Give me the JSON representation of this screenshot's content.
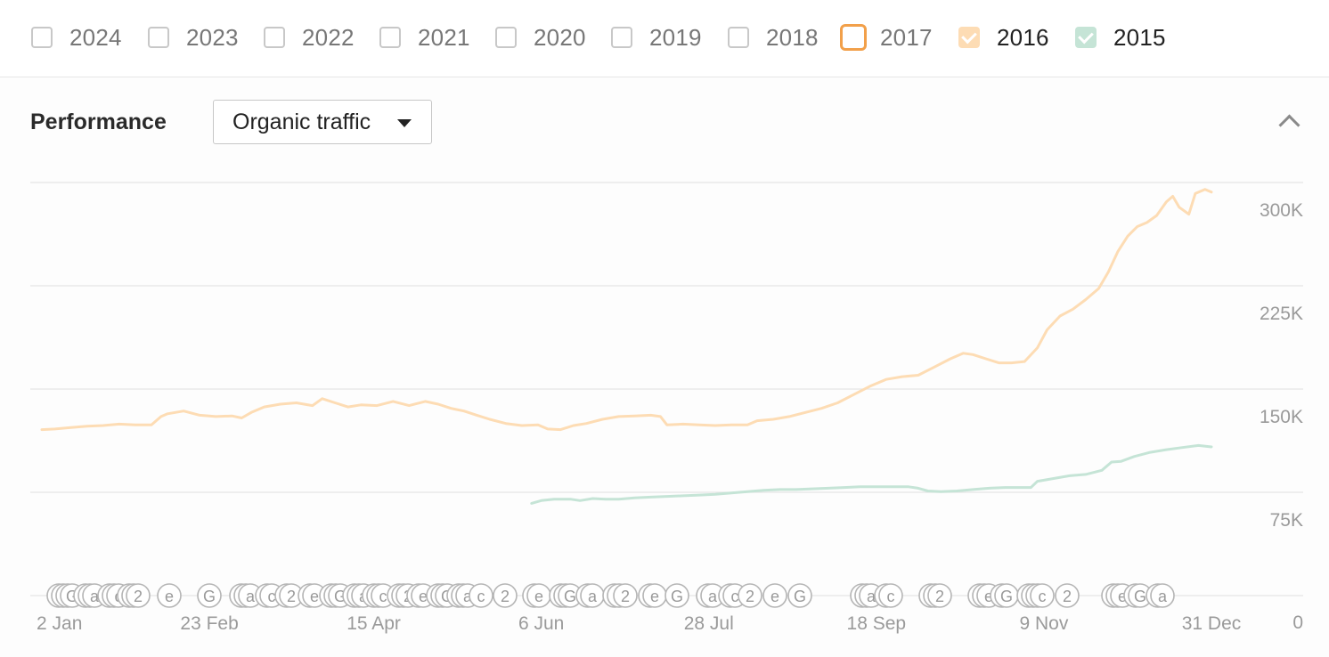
{
  "years": [
    {
      "label": "2024",
      "state": "unchecked"
    },
    {
      "label": "2023",
      "state": "unchecked"
    },
    {
      "label": "2022",
      "state": "unchecked"
    },
    {
      "label": "2021",
      "state": "unchecked"
    },
    {
      "label": "2020",
      "state": "unchecked"
    },
    {
      "label": "2019",
      "state": "unchecked"
    },
    {
      "label": "2018",
      "state": "unchecked"
    },
    {
      "label": "2017",
      "state": "focused"
    },
    {
      "label": "2016",
      "state": "checked"
    },
    {
      "label": "2015",
      "state": "checked"
    }
  ],
  "colors": {
    "y2016": "#fddcb4",
    "y2015": "#c5e4d6",
    "focus": "#f2a04a",
    "grid": "#e6e6e6"
  },
  "panel": {
    "title": "Performance",
    "metric_selector": "Organic traffic",
    "collapse_icon": "chevron-up-icon"
  },
  "chart_data": {
    "type": "line",
    "ylim": [
      0,
      300000
    ],
    "ytick_labels": [
      "0",
      "75K",
      "150K",
      "225K",
      "300K"
    ],
    "yticks": [
      0,
      75000,
      150000,
      225000,
      300000
    ],
    "xtick_labels": [
      "2 Jan",
      "23 Feb",
      "15 Apr",
      "6 Jun",
      "28 Jul",
      "18 Sep",
      "9 Nov",
      "31 Dec"
    ],
    "xticks_day": [
      1,
      53,
      104,
      156,
      208,
      260,
      312,
      364
    ],
    "x_unit": "day of year",
    "series": [
      {
        "name": "2016",
        "color": "#fddcb4",
        "points": [
          [
            1,
            120500
          ],
          [
            5,
            121000
          ],
          [
            10,
            122000
          ],
          [
            15,
            123000
          ],
          [
            20,
            123500
          ],
          [
            25,
            124500
          ],
          [
            30,
            124000
          ],
          [
            35,
            124000
          ],
          [
            38,
            130000
          ],
          [
            40,
            132000
          ],
          [
            45,
            134000
          ],
          [
            50,
            131000
          ],
          [
            55,
            130000
          ],
          [
            60,
            130500
          ],
          [
            63,
            129000
          ],
          [
            66,
            133000
          ],
          [
            70,
            137000
          ],
          [
            75,
            139000
          ],
          [
            80,
            140000
          ],
          [
            85,
            138000
          ],
          [
            88,
            143000
          ],
          [
            92,
            140000
          ],
          [
            96,
            137000
          ],
          [
            100,
            138500
          ],
          [
            105,
            138000
          ],
          [
            110,
            141000
          ],
          [
            115,
            138000
          ],
          [
            120,
            141000
          ],
          [
            124,
            139000
          ],
          [
            128,
            136000
          ],
          [
            132,
            134000
          ],
          [
            136,
            131000
          ],
          [
            140,
            128000
          ],
          [
            145,
            125000
          ],
          [
            150,
            123500
          ],
          [
            155,
            124000
          ],
          [
            158,
            121000
          ],
          [
            162,
            120500
          ],
          [
            166,
            123500
          ],
          [
            170,
            125000
          ],
          [
            175,
            128000
          ],
          [
            180,
            130000
          ],
          [
            185,
            130500
          ],
          [
            190,
            131000
          ],
          [
            193,
            130000
          ],
          [
            195,
            124000
          ],
          [
            200,
            124500
          ],
          [
            205,
            124000
          ],
          [
            210,
            123500
          ],
          [
            215,
            124000
          ],
          [
            220,
            124000
          ],
          [
            223,
            127000
          ],
          [
            228,
            128000
          ],
          [
            233,
            130000
          ],
          [
            238,
            133000
          ],
          [
            243,
            136000
          ],
          [
            248,
            140000
          ],
          [
            253,
            146000
          ],
          [
            258,
            152000
          ],
          [
            263,
            157000
          ],
          [
            268,
            159000
          ],
          [
            273,
            160000
          ],
          [
            278,
            166000
          ],
          [
            283,
            172000
          ],
          [
            287,
            176000
          ],
          [
            290,
            175000
          ],
          [
            294,
            172000
          ],
          [
            298,
            169000
          ],
          [
            302,
            169000
          ],
          [
            306,
            170000
          ],
          [
            310,
            180000
          ],
          [
            313,
            193000
          ],
          [
            317,
            203000
          ],
          [
            321,
            208000
          ],
          [
            325,
            215000
          ],
          [
            329,
            223000
          ],
          [
            332,
            235000
          ],
          [
            335,
            250000
          ],
          [
            338,
            261000
          ],
          [
            341,
            268000
          ],
          [
            344,
            271000
          ],
          [
            347,
            276000
          ],
          [
            350,
            286000
          ],
          [
            352,
            290000
          ],
          [
            354,
            282000
          ],
          [
            357,
            277000
          ],
          [
            359,
            292000
          ],
          [
            362,
            295000
          ],
          [
            364,
            293000
          ]
        ]
      },
      {
        "name": "2015",
        "color": "#c5e4d6",
        "points": [
          [
            153,
            67000
          ],
          [
            156,
            69000
          ],
          [
            160,
            70000
          ],
          [
            165,
            70000
          ],
          [
            168,
            69000
          ],
          [
            172,
            70500
          ],
          [
            176,
            70000
          ],
          [
            180,
            70000
          ],
          [
            185,
            71000
          ],
          [
            190,
            71500
          ],
          [
            195,
            72000
          ],
          [
            200,
            72500
          ],
          [
            205,
            73000
          ],
          [
            210,
            73500
          ],
          [
            215,
            74500
          ],
          [
            220,
            75500
          ],
          [
            225,
            76500
          ],
          [
            230,
            77000
          ],
          [
            235,
            77000
          ],
          [
            240,
            77500
          ],
          [
            245,
            78000
          ],
          [
            250,
            78500
          ],
          [
            255,
            79000
          ],
          [
            260,
            79000
          ],
          [
            265,
            79000
          ],
          [
            270,
            79000
          ],
          [
            273,
            78000
          ],
          [
            276,
            76000
          ],
          [
            280,
            75500
          ],
          [
            285,
            76000
          ],
          [
            290,
            77000
          ],
          [
            295,
            78000
          ],
          [
            300,
            78500
          ],
          [
            305,
            78500
          ],
          [
            308,
            78500
          ],
          [
            310,
            83000
          ],
          [
            315,
            85000
          ],
          [
            320,
            87000
          ],
          [
            325,
            88000
          ],
          [
            330,
            91000
          ],
          [
            333,
            97000
          ],
          [
            336,
            97500
          ],
          [
            340,
            101000
          ],
          [
            345,
            104000
          ],
          [
            350,
            106000
          ],
          [
            355,
            107500
          ],
          [
            360,
            109000
          ],
          [
            364,
            108000
          ]
        ]
      }
    ],
    "annotation_markers_count": 60,
    "grid": true
  }
}
